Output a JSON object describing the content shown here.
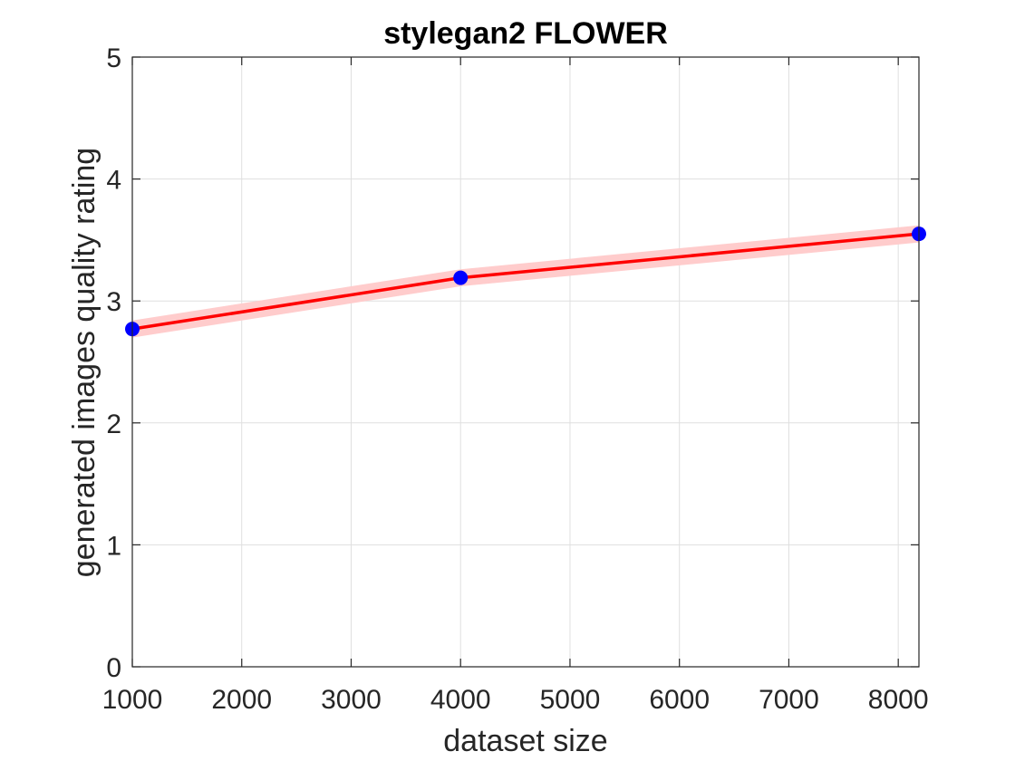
{
  "chart_data": {
    "type": "line",
    "title": "stylegan2 FLOWER",
    "xlabel": "dataset size",
    "ylabel": "generated images quality rating",
    "xlim": [
      1000,
      8189
    ],
    "ylim": [
      0,
      5
    ],
    "xticks": [
      1000,
      2000,
      3000,
      4000,
      5000,
      6000,
      7000,
      8000
    ],
    "yticks": [
      0,
      1,
      2,
      3,
      4,
      5
    ],
    "grid": true,
    "series": [
      {
        "x": [
          1000,
          4000,
          8189
        ],
        "y": [
          2.77,
          3.19,
          3.55
        ],
        "band_lower": [
          2.7,
          3.12,
          3.48
        ],
        "band_upper": [
          2.84,
          3.26,
          3.62
        ],
        "line_color": "#ff0000",
        "band_color": "#ffcccc",
        "marker_color": "#0000ff"
      }
    ]
  }
}
